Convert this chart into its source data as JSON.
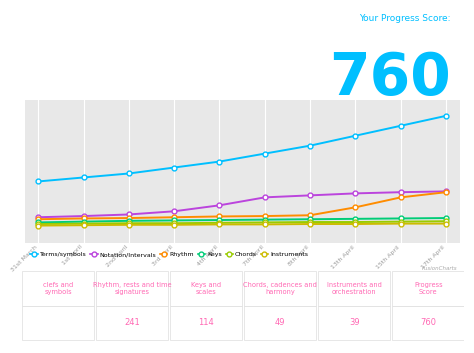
{
  "title_label": "Your Progress Score:",
  "score": "760",
  "x_labels": [
    "31st March",
    "1st April",
    "2nd April",
    "3rd April",
    "4th April",
    "7th April",
    "8th April",
    "13th April",
    "15th April",
    "17th April"
  ],
  "series": {
    "Terms/symbols": {
      "color": "#00BFFF",
      "values": [
        155,
        165,
        175,
        190,
        205,
        225,
        245,
        270,
        295,
        320
      ]
    },
    "Notation/Intervals": {
      "color": "#BB44DD",
      "values": [
        65,
        68,
        72,
        80,
        95,
        115,
        120,
        125,
        128,
        130
      ]
    },
    "Rhythm": {
      "color": "#FF8C00",
      "values": [
        60,
        62,
        63,
        65,
        67,
        68,
        70,
        90,
        115,
        128
      ]
    },
    "Keys": {
      "color": "#00CC77",
      "values": [
        52,
        54,
        56,
        57,
        58,
        59,
        60,
        61,
        62,
        63
      ]
    },
    "Chords": {
      "color": "#99CC00",
      "values": [
        48,
        49,
        50,
        50,
        51,
        52,
        53,
        53,
        54,
        55
      ]
    },
    "Instruments": {
      "color": "#CCBB00",
      "values": [
        44,
        45,
        46,
        46,
        47,
        47,
        48,
        48,
        49,
        49
      ]
    }
  },
  "legend_order": [
    "Terms/symbols",
    "Notation/Intervals",
    "Rhythm",
    "Keys",
    "Chords",
    "Instruments"
  ],
  "table_headers": [
    "clefs and\nsymbols",
    "Rhythm, rests and time\nsignatures",
    "Keys and\nscales",
    "Chords, cadences and\nharmony",
    "Instruments and\norchestration",
    "Progress\nScore"
  ],
  "table_values": [
    "",
    "241",
    "114",
    "49",
    "39",
    "760"
  ],
  "bg_color": "#f2f2f2",
  "plot_bg": "#e8e8e8",
  "score_color": "#00BFFF",
  "title_color": "#00BFFF",
  "table_header_color": "#FF69B4",
  "table_value_color": "#FF69B4",
  "fusioncharts_label": "FusionCharts"
}
